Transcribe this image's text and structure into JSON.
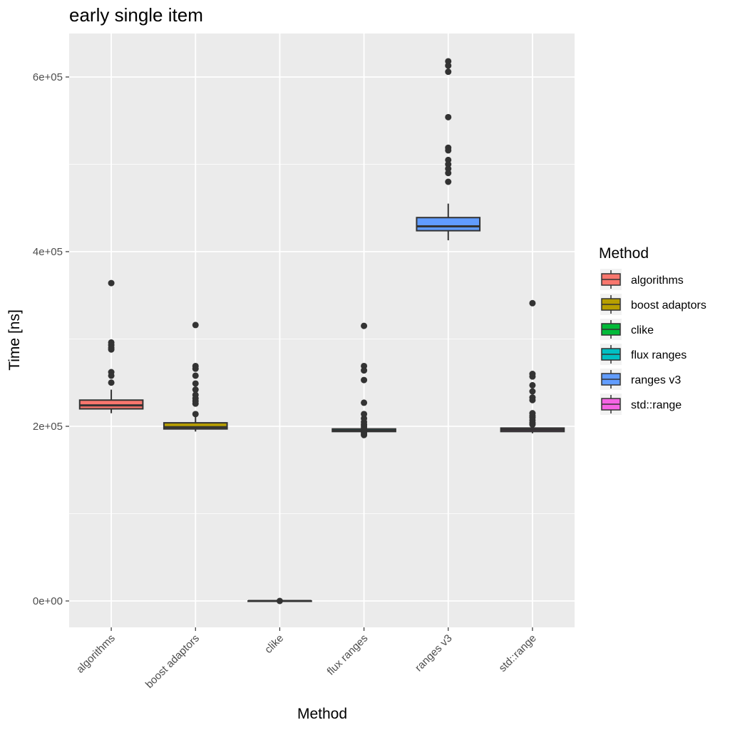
{
  "chart_data": {
    "type": "boxplot",
    "title": "early single item",
    "xlabel": "Method",
    "ylabel": "Time [ns]",
    "ylim": [
      -30000,
      650000
    ],
    "y_ticks": [
      0,
      200000,
      400000,
      600000
    ],
    "y_tick_labels": [
      "0e+00",
      "2e+05",
      "4e+05",
      "6e+05"
    ],
    "grid": true,
    "legend": {
      "title": "Method",
      "position": "right"
    },
    "categories": [
      "algorithms",
      "boost adaptors",
      "clike",
      "flux ranges",
      "ranges v3",
      "std::range"
    ],
    "colors": [
      "#F8766D",
      "#B79F00",
      "#00BA38",
      "#00BFC4",
      "#619CFF",
      "#F564E3"
    ],
    "series": [
      {
        "category": "algorithms",
        "whisker_low": 215000,
        "q1": 220000,
        "median": 224000,
        "q3": 230000,
        "whisker_high": 242000,
        "outliers": [
          364000,
          296000,
          293000,
          290000,
          288000,
          262000,
          258000,
          250000
        ]
      },
      {
        "category": "boost adaptors",
        "whisker_low": 194000,
        "q1": 197000,
        "median": 199000,
        "q3": 204000,
        "whisker_high": 213000,
        "outliers": [
          316000,
          269000,
          266000,
          258000,
          249000,
          242000,
          236000,
          232000,
          229000,
          226000,
          214000
        ]
      },
      {
        "category": "clike",
        "whisker_low": 0,
        "q1": 0,
        "median": 0,
        "q3": 0,
        "whisker_high": 0,
        "outliers": [
          0
        ]
      },
      {
        "category": "flux ranges",
        "whisker_low": 192000,
        "q1": 194000,
        "median": 195000,
        "q3": 197000,
        "whisker_high": 199000,
        "outliers": [
          315000,
          269000,
          264000,
          253000,
          227000,
          214000,
          209000,
          205000,
          202000,
          200000,
          198000,
          196000,
          193000,
          191000,
          190000
        ]
      },
      {
        "category": "ranges v3",
        "whisker_low": 413000,
        "q1": 424000,
        "median": 429000,
        "q3": 439000,
        "whisker_high": 455000,
        "outliers": [
          618000,
          613000,
          606000,
          554000,
          519000,
          516000,
          505000,
          500000,
          495000,
          490000,
          480000
        ]
      },
      {
        "category": "std::range",
        "whisker_low": 192000,
        "q1": 194000,
        "median": 196000,
        "q3": 198000,
        "whisker_high": 201000,
        "outliers": [
          341000,
          260000,
          257000,
          247000,
          240000,
          233000,
          230000,
          215000,
          212000,
          210000,
          207000,
          204000,
          202000
        ]
      }
    ]
  }
}
